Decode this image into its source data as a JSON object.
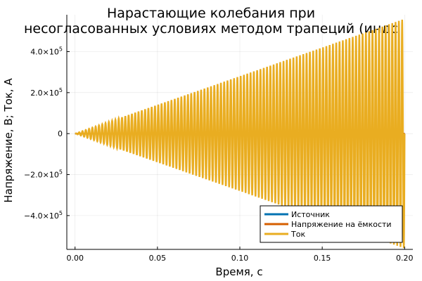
{
  "chart_data": {
    "type": "line",
    "title_lines": [
      "Нарастающие колебания при",
      "несогласованных условиях методом трапеций (индс"
    ],
    "xlabel": "Время, с",
    "ylabel": "Напряжение, В; Ток, А",
    "xlim": [
      -0.005,
      0.205
    ],
    "ylim": [
      -565000,
      580000
    ],
    "x_ticks": [
      0.0,
      0.05,
      0.1,
      0.15,
      0.2
    ],
    "x_tick_labels": [
      "0.00",
      "0.05",
      "0.10",
      "0.15",
      "0.20"
    ],
    "y_ticks": [
      -400000,
      -200000,
      0,
      200000,
      400000
    ],
    "y_tick_labels": [
      {
        "mant": "−4.0×10",
        "exp": "5"
      },
      {
        "mant": "−2.0×10",
        "exp": "5"
      },
      {
        "mant": "0",
        "exp": ""
      },
      {
        "mant": "2.0×10",
        "exp": "5"
      },
      {
        "mant": "4.0×10",
        "exp": "5"
      }
    ],
    "grid": true,
    "legend_position": "bottom-right",
    "series": [
      {
        "name": "Источник",
        "color": "#0072b2",
        "kind": "flat",
        "value": 0
      },
      {
        "name": "Напряжение на ёмкости",
        "color": "#d55e00",
        "kind": "flat",
        "value": 0
      },
      {
        "name": "Ток",
        "color": "#e9ad21",
        "kind": "growing_oscillation",
        "envelope_start": 0,
        "envelope_end": 560000,
        "x_start": 0.0,
        "x_end": 0.2,
        "cycles": 100
      }
    ]
  }
}
